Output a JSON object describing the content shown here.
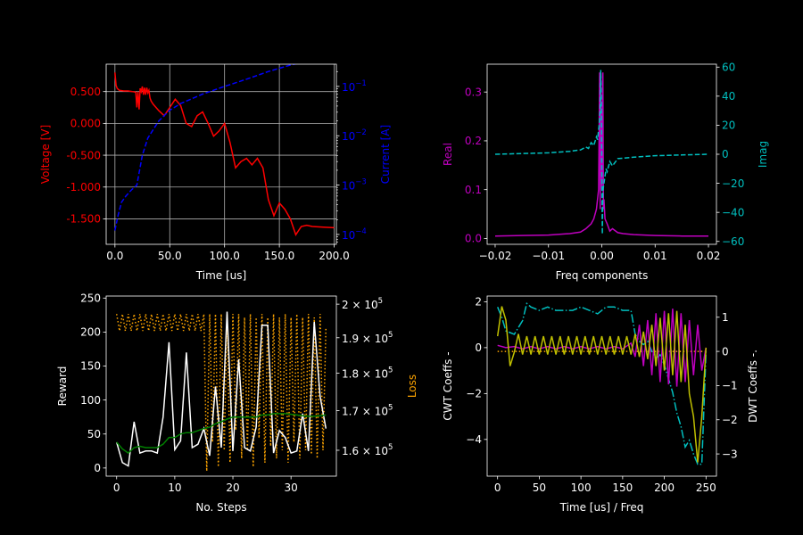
{
  "figure": {
    "background": "#000000",
    "foreground": "#ffffff"
  },
  "chart_data": [
    {
      "type": "line",
      "panel": "top-left",
      "xlabel": "Time [us]",
      "ylabel": "Voltage [V]",
      "ylabel2": "Current [A]",
      "xlim": [
        -8,
        202
      ],
      "ylim": [
        -1.9,
        0.93
      ],
      "y2lim_log10": [
        -4.2,
        -0.55
      ],
      "y2scale": "log",
      "grid": true,
      "xticks": [
        0,
        50,
        100,
        150,
        200
      ],
      "xtick_labels": [
        "0.0",
        "50.0",
        "100.0",
        "150.0",
        "200.0"
      ],
      "yticks": [
        0.5,
        0,
        -0.5,
        -1,
        -1.5
      ],
      "ytick_labels": [
        "0.500",
        "0.000",
        "-0.500",
        "-1.000",
        "-1.500"
      ],
      "y2ticks_exp": [
        -1,
        -2,
        -3,
        -4
      ],
      "colors": {
        "left": "#ff0000",
        "right": "#0000ff"
      },
      "series": [
        {
          "axis": "left",
          "color": "#ff0000",
          "style": "solid",
          "x": [
            0,
            1,
            2,
            4,
            8,
            12,
            16,
            19,
            20,
            21,
            22,
            23,
            24,
            25,
            26,
            27,
            28,
            29,
            30,
            31,
            32,
            33,
            35,
            40,
            45,
            50,
            55,
            60,
            65,
            70,
            75,
            80,
            85,
            90,
            95,
            100,
            105,
            110,
            115,
            120,
            125,
            130,
            135,
            140,
            145,
            150,
            155,
            160,
            165,
            170,
            175,
            180,
            190,
            200
          ],
          "y": [
            0.8,
            0.6,
            0.55,
            0.52,
            0.51,
            0.51,
            0.5,
            0.49,
            0.25,
            0.5,
            0.22,
            0.55,
            0.5,
            0.58,
            0.45,
            0.56,
            0.45,
            0.56,
            0.48,
            0.52,
            0.4,
            0.35,
            0.3,
            0.2,
            0.12,
            0.25,
            0.38,
            0.28,
            0.0,
            -0.05,
            0.12,
            0.18,
            0.0,
            -0.2,
            -0.12,
            0.0,
            -0.3,
            -0.7,
            -0.6,
            -0.55,
            -0.65,
            -0.55,
            -0.7,
            -1.2,
            -1.45,
            -1.25,
            -1.35,
            -1.5,
            -1.75,
            -1.62,
            -1.6,
            -1.62,
            -1.63,
            -1.64
          ]
        },
        {
          "axis": "right",
          "color": "#0000ff",
          "style": "dashed",
          "x": [
            0,
            3,
            6,
            10,
            15,
            20,
            25,
            30,
            40,
            50,
            60,
            80,
            100,
            120,
            140,
            160,
            180,
            190,
            200
          ],
          "y": [
            0.00012,
            0.00025,
            0.00045,
            0.0006,
            0.0008,
            0.001,
            0.004,
            0.009,
            0.02,
            0.033,
            0.045,
            0.07,
            0.1,
            0.14,
            0.2,
            0.27,
            0.34,
            0.38,
            0.4
          ]
        }
      ]
    },
    {
      "type": "line",
      "panel": "top-right",
      "xlabel": "Freq components",
      "ylabel": "Real",
      "ylabel2": "Imag",
      "xlim": [
        -0.0215,
        0.0215
      ],
      "ylim": [
        -0.012,
        0.357
      ],
      "y2lim": [
        -62,
        62
      ],
      "xticks": [
        -0.02,
        -0.01,
        0,
        0.01,
        0.02
      ],
      "xtick_labels": [
        "−0.02",
        "−0.01",
        "0.00",
        "0.01",
        "0.02"
      ],
      "yticks": [
        0,
        0.1,
        0.2,
        0.3
      ],
      "ytick_labels": [
        "0.0",
        "0.1",
        "0.2",
        "0.3"
      ],
      "y2ticks": [
        60,
        40,
        20,
        0,
        -20,
        -40,
        -60
      ],
      "y2tick_labels": [
        "60",
        "40",
        "20",
        "0",
        "−20",
        "−40",
        "−60"
      ],
      "colors": {
        "left": "#bf00bf",
        "right": "#00bfbf"
      },
      "series": [
        {
          "axis": "left",
          "color": "#bf00bf",
          "style": "solid",
          "x": [
            -0.02,
            -0.015,
            -0.01,
            -0.006,
            -0.004,
            -0.003,
            -0.002,
            -0.0015,
            -0.001,
            -0.0006,
            -0.0004,
            -0.0003,
            -0.0002,
            0,
            0.0002,
            0.0003,
            0.0004,
            0.0006,
            0.001,
            0.0015,
            0.002,
            0.003,
            0.004,
            0.006,
            0.01,
            0.015,
            0.02
          ],
          "y": [
            0.005,
            0.006,
            0.007,
            0.01,
            0.013,
            0.02,
            0.03,
            0.04,
            0.06,
            0.1,
            0.34,
            0.06,
            0.34,
            0.1,
            0.34,
            0.06,
            0.08,
            0.04,
            0.03,
            0.015,
            0.02,
            0.012,
            0.01,
            0.008,
            0.006,
            0.005,
            0.005
          ]
        },
        {
          "axis": "right",
          "color": "#00bfbf",
          "style": "dashed",
          "x": [
            -0.02,
            -0.015,
            -0.01,
            -0.006,
            -0.004,
            -0.003,
            -0.0025,
            -0.002,
            -0.0015,
            -0.001,
            -0.0008,
            -0.0005,
            -0.0003,
            -0.0002,
            -0.0001,
            0.0001,
            0.0002,
            0.0004,
            0.0008,
            0.001,
            0.0015,
            0.002,
            0.003,
            0.006,
            0.01,
            0.015,
            0.02
          ],
          "y": [
            0,
            0.5,
            1,
            2,
            3,
            5,
            4,
            8,
            6,
            12,
            10,
            20,
            30,
            58,
            40,
            -55,
            -25,
            -20,
            -10,
            -12,
            -5,
            -8,
            -3,
            -2,
            -1,
            -0.5,
            0
          ]
        }
      ]
    },
    {
      "type": "line",
      "panel": "bottom-left",
      "xlabel": "No. Steps",
      "ylabel": "Reward",
      "ylabel2": "Loss",
      "xlim": [
        -1.8,
        37.8
      ],
      "ylim": [
        -12,
        253
      ],
      "y2lim": [
        153800,
        202500
      ],
      "y2scale": "log",
      "xticks": [
        0,
        10,
        20,
        30
      ],
      "yticks": [
        0,
        50,
        100,
        150,
        200,
        250
      ],
      "y2ticks": [
        160000,
        170000,
        180000,
        190000,
        200000
      ],
      "y2tick_mantissa": [
        "1.6",
        "1.7",
        "1.8",
        "1.9",
        "2"
      ],
      "y2tick_exp": "5",
      "colors": {
        "reward": "#ffffff",
        "smooth": "#008000",
        "loss": "#ffa500",
        "right_label": "#ffa500"
      },
      "series": [
        {
          "axis": "left",
          "color": "#ffffff",
          "style": "solid",
          "x": [
            0,
            1,
            2,
            3,
            4,
            5,
            6,
            7,
            8,
            9,
            10,
            11,
            12,
            13,
            14,
            15,
            16,
            17,
            18,
            19,
            20,
            21,
            22,
            23,
            24,
            25,
            26,
            27,
            28,
            29,
            30,
            31,
            32,
            33,
            34,
            35,
            36
          ],
          "y": [
            38,
            8,
            3,
            68,
            22,
            25,
            25,
            22,
            75,
            185,
            27,
            40,
            170,
            30,
            35,
            58,
            18,
            120,
            30,
            230,
            25,
            160,
            30,
            25,
            60,
            210,
            210,
            22,
            55,
            45,
            22,
            25,
            80,
            25,
            215,
            105,
            58
          ]
        },
        {
          "axis": "left",
          "color": "#008000",
          "style": "solid",
          "x": [
            0,
            1,
            2,
            3,
            4,
            5,
            6,
            7,
            8,
            9,
            10,
            11,
            12,
            13,
            14,
            15,
            16,
            17,
            18,
            19,
            20,
            21,
            22,
            23,
            24,
            25,
            26,
            27,
            28,
            29,
            30,
            31,
            32,
            33,
            34,
            35,
            36
          ],
          "y": [
            38,
            28,
            22,
            30,
            32,
            30,
            30,
            30,
            35,
            45,
            45,
            50,
            52,
            52,
            55,
            58,
            60,
            65,
            68,
            72,
            75,
            75,
            75,
            75,
            75,
            78,
            78,
            80,
            80,
            80,
            79,
            78,
            77,
            76,
            76,
            77,
            78
          ]
        },
        {
          "axis": "right",
          "color": "#ffa500",
          "style": "dotted",
          "x": [
            0,
            0.5,
            1,
            1.5,
            2,
            2.5,
            3,
            3.5,
            4,
            4.5,
            5,
            5.5,
            6,
            6.5,
            7,
            7.5,
            8,
            8.5,
            9,
            9.5,
            10,
            10.5,
            11,
            11.5,
            12,
            12.5,
            13,
            13.5,
            14,
            14.5,
            15,
            15.5,
            16,
            16.5,
            17,
            17.5,
            18,
            18.5,
            19,
            19.5,
            20,
            20.5,
            21,
            21.5,
            22,
            22.5,
            23,
            23.5,
            24,
            24.5,
            25,
            25.5,
            26,
            26.5,
            27,
            27.5,
            28,
            28.5,
            29,
            29.5,
            30,
            30.5,
            31,
            31.5,
            32,
            32.5,
            33,
            33.5,
            34,
            34.5,
            35,
            35.5,
            36
          ],
          "y": [
            197000,
            192000,
            197000,
            192000,
            197000,
            192000,
            197000,
            192000,
            197000,
            192000,
            197000,
            192000,
            197000,
            192000,
            197000,
            192000,
            197000,
            192000,
            197000,
            192000,
            197000,
            192000,
            197000,
            192000,
            197000,
            192000,
            197000,
            192000,
            197000,
            192000,
            197000,
            155000,
            197000,
            162000,
            197000,
            156000,
            197000,
            160000,
            197000,
            157000,
            197000,
            165000,
            197000,
            158000,
            196000,
            160000,
            197000,
            156000,
            196000,
            163000,
            197000,
            157000,
            196000,
            161000,
            197000,
            158000,
            196000,
            160000,
            197000,
            157000,
            196000,
            162000,
            197000,
            158000,
            196000,
            160000,
            197000,
            159000,
            196000,
            158000,
            197000,
            160000,
            193000
          ]
        }
      ]
    },
    {
      "type": "line",
      "panel": "bottom-right",
      "xlabel": "Time [us] / Freq",
      "ylabel": "CWT Coeffs -",
      "ylabel2": "DWT Coeffs -.",
      "xlim": [
        -12.5,
        262.5
      ],
      "ylim": [
        -5.6,
        2.25
      ],
      "y2lim": [
        -3.65,
        1.62
      ],
      "xticks": [
        0,
        50,
        100,
        150,
        200,
        250
      ],
      "yticks": [
        2,
        0,
        -2,
        -4
      ],
      "ytick_labels": [
        "2",
        "0",
        "−2",
        "−4"
      ],
      "y2ticks": [
        1,
        0,
        -1,
        -2,
        -3
      ],
      "y2tick_labels": [
        "1",
        "0",
        "−1",
        "−2",
        "−3"
      ],
      "colors": {
        "magenta": "#bf00bf",
        "yellow": "#bfbf00",
        "cyan": "#00bfbf",
        "orange": "#ffa500"
      },
      "series": [
        {
          "axis": "left",
          "color": "#bf00bf",
          "style": "solid",
          "x": [
            0,
            10,
            20,
            30,
            40,
            50,
            60,
            70,
            80,
            90,
            100,
            110,
            120,
            130,
            140,
            150,
            160,
            165,
            170,
            175,
            180,
            185,
            190,
            195,
            200,
            205,
            210,
            215,
            220,
            225,
            230,
            235,
            240,
            245,
            250
          ],
          "y": [
            0.1,
            0.0,
            0.05,
            -0.05,
            0.05,
            -0.05,
            0.05,
            -0.05,
            0.05,
            -0.05,
            0.05,
            -0.05,
            0.05,
            -0.05,
            0.05,
            -0.05,
            0.2,
            -0.4,
            1.0,
            -0.8,
            1.2,
            -1.2,
            1.5,
            -1.5,
            1.6,
            -1.6,
            1.7,
            -1.7,
            1.5,
            -1.5,
            1.2,
            -1.2,
            1.0,
            -1.0,
            0.0
          ]
        },
        {
          "axis": "left",
          "color": "#bfbf00",
          "style": "solid",
          "x": [
            0,
            5,
            10,
            15,
            20,
            25,
            30,
            35,
            40,
            45,
            50,
            55,
            60,
            65,
            70,
            75,
            80,
            85,
            90,
            95,
            100,
            105,
            110,
            115,
            120,
            125,
            130,
            135,
            140,
            145,
            150,
            155,
            160,
            165,
            170,
            175,
            180,
            185,
            190,
            195,
            200,
            205,
            210,
            215,
            220,
            225,
            230,
            235,
            240,
            245,
            250
          ],
          "y": [
            0.5,
            1.8,
            1.2,
            -0.8,
            -0.2,
            0.6,
            -0.3,
            0.5,
            -0.3,
            0.5,
            -0.3,
            0.5,
            -0.3,
            0.5,
            -0.3,
            0.5,
            -0.3,
            0.5,
            -0.3,
            0.5,
            -0.3,
            0.5,
            -0.3,
            0.5,
            -0.3,
            0.5,
            -0.3,
            0.5,
            -0.3,
            0.5,
            -0.3,
            0.5,
            -0.3,
            0.6,
            -0.4,
            0.7,
            -0.5,
            1.0,
            -0.8,
            1.3,
            -1.0,
            1.5,
            -1.2,
            1.6,
            -1.5,
            1.0,
            -2.0,
            -3.0,
            -5.0,
            -3.0,
            0.0
          ]
        },
        {
          "axis": "right",
          "color": "#00bfbf",
          "style": "dashdot",
          "x": [
            0,
            5,
            10,
            20,
            30,
            35,
            40,
            50,
            60,
            70,
            80,
            90,
            100,
            110,
            120,
            130,
            140,
            150,
            160,
            165,
            170,
            175,
            180,
            185,
            190,
            195,
            200,
            205,
            210,
            215,
            220,
            225,
            230,
            235,
            240,
            245,
            250
          ],
          "y": [
            1.3,
            1.0,
            0.6,
            0.5,
            0.9,
            1.4,
            1.3,
            1.2,
            1.3,
            1.2,
            1.2,
            1.2,
            1.3,
            1.2,
            1.1,
            1.3,
            1.3,
            1.2,
            1.2,
            0.5,
            0.3,
            0.2,
            0.3,
            0.0,
            -0.2,
            -0.1,
            -0.4,
            -0.8,
            -1.2,
            -1.8,
            -2.2,
            -2.8,
            -2.6,
            -3.0,
            -3.3,
            -3.3,
            0.0
          ]
        },
        {
          "axis": "right",
          "color": "#ffa500",
          "style": "dotted",
          "x": [
            0,
            25,
            50,
            100,
            150,
            200,
            250
          ],
          "y": [
            0,
            0,
            0,
            0,
            0,
            0,
            0
          ]
        }
      ]
    }
  ]
}
